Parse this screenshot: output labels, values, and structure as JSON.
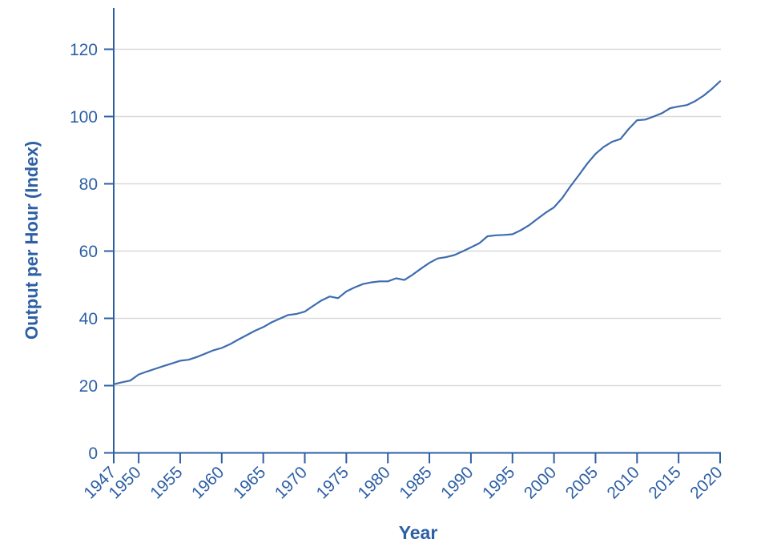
{
  "chart_data": {
    "type": "line",
    "title": "",
    "xlabel": "Year",
    "ylabel": "Output per Hour (Index)",
    "x_ticks": [
      1947,
      1950,
      1955,
      1960,
      1965,
      1970,
      1975,
      1980,
      1985,
      1990,
      1995,
      2000,
      2005,
      2010,
      2015,
      2020
    ],
    "y_ticks": [
      0,
      20,
      40,
      60,
      80,
      100,
      120
    ],
    "xlim": [
      1947,
      2020
    ],
    "ylim": [
      0,
      130
    ],
    "grid": "horizontal-light-gray",
    "legend": "none",
    "series": [
      {
        "name": "Output per hour (index)",
        "x": [
          1947,
          1948,
          1949,
          1950,
          1951,
          1952,
          1953,
          1954,
          1955,
          1956,
          1957,
          1958,
          1959,
          1960,
          1961,
          1962,
          1963,
          1964,
          1965,
          1966,
          1967,
          1968,
          1969,
          1970,
          1971,
          1972,
          1973,
          1974,
          1975,
          1976,
          1977,
          1978,
          1979,
          1980,
          1981,
          1982,
          1983,
          1984,
          1985,
          1986,
          1987,
          1988,
          1989,
          1990,
          1991,
          1992,
          1993,
          1994,
          1995,
          1996,
          1997,
          1998,
          1999,
          2000,
          2001,
          2002,
          2003,
          2004,
          2005,
          2006,
          2007,
          2008,
          2009,
          2010,
          2011,
          2012,
          2013,
          2014,
          2015,
          2016,
          2017,
          2018,
          2019,
          2020
        ],
        "values": [
          20.4,
          21.0,
          21.5,
          23.3,
          24.2,
          25.0,
          25.8,
          26.6,
          27.4,
          27.7,
          28.5,
          29.5,
          30.5,
          31.2,
          32.3,
          33.7,
          35.0,
          36.3,
          37.4,
          38.8,
          39.9,
          41.0,
          41.3,
          42.0,
          43.7,
          45.3,
          46.5,
          46.0,
          48.0,
          49.2,
          50.2,
          50.7,
          51.0,
          51.0,
          51.9,
          51.4,
          53.0,
          54.8,
          56.5,
          57.8,
          58.2,
          58.8,
          59.9,
          61.1,
          62.3,
          64.4,
          64.7,
          64.8,
          65.0,
          66.2,
          67.7,
          69.6,
          71.4,
          73.0,
          75.8,
          79.3,
          82.6,
          86.0,
          88.9,
          91.0,
          92.5,
          93.3,
          96.3,
          98.9,
          99.1,
          100.0,
          101.0,
          102.5,
          103.0,
          103.4,
          104.6,
          106.2,
          108.2,
          110.5
        ]
      }
    ],
    "colors": {
      "line": "#3e6cae",
      "axis": "#2d5fa5",
      "text": "#2d5fa5",
      "grid": "#d9d9d9",
      "background": "#ffffff"
    }
  }
}
